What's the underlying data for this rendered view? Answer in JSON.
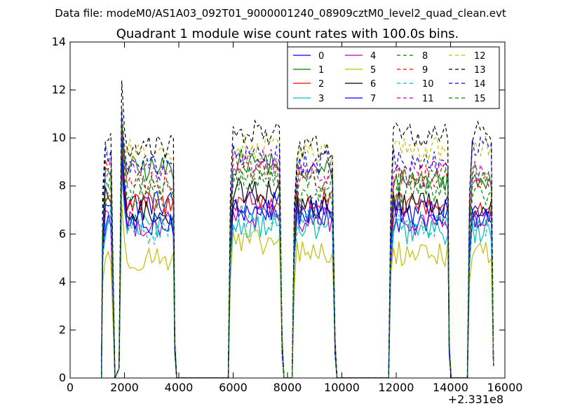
{
  "chart_data": {
    "type": "line",
    "suptitle": "Data file: modeM0/AS1A03_092T01_9000001240_08909cztM0_level2_quad_clean.evt",
    "title": "Quadrant 1 module wise count rates with 100.0s bins.",
    "xlabel": "",
    "ylabel": "",
    "xlim": [
      0,
      16000
    ],
    "ylim": [
      0,
      14
    ],
    "x_offset_label": "+2.331e8",
    "x_ticks": [
      0,
      2000,
      4000,
      6000,
      8000,
      10000,
      12000,
      14000,
      16000
    ],
    "x_tick_labels": [
      "0",
      "2000",
      "4000",
      "6000",
      "8000",
      "10000",
      "12000",
      "14000",
      "16000"
    ],
    "y_ticks": [
      0,
      2,
      4,
      6,
      8,
      10,
      12,
      14
    ],
    "y_tick_labels": [
      "0",
      "2",
      "4",
      "6",
      "8",
      "10",
      "12",
      "14"
    ],
    "grid": false,
    "legend_position": "top-right",
    "segments": [
      {
        "start": 1200,
        "end": 1550
      },
      {
        "start": 1900,
        "end": 3800
      },
      {
        "start": 5900,
        "end": 7750
      },
      {
        "start": 8250,
        "end": 9700
      },
      {
        "start": 11800,
        "end": 13900
      },
      {
        "start": 14700,
        "end": 15550
      }
    ],
    "drops": [
      {
        "from": 1550,
        "to": 1700,
        "min": 0.0
      },
      {
        "from": 1700,
        "to": 1800,
        "min": 0.0
      }
    ],
    "series": [
      {
        "name": "0",
        "color": "#0000ff",
        "dash": "solid",
        "seg_levels": [
          6.5,
          7.3,
          7.0,
          6.9,
          6.6,
          6.8
        ],
        "peak": 10.2
      },
      {
        "name": "1",
        "color": "#008000",
        "dash": "solid",
        "seg_levels": [
          8.4,
          8.7,
          9.0,
          8.6,
          8.3,
          8.4
        ],
        "peak": 10.6
      },
      {
        "name": "2",
        "color": "#ff0000",
        "dash": "solid",
        "seg_levels": [
          7.4,
          7.2,
          7.4,
          7.3,
          7.2,
          7.0
        ],
        "peak": 9.5
      },
      {
        "name": "3",
        "color": "#00bfbf",
        "dash": "solid",
        "seg_levels": [
          6.4,
          6.3,
          6.4,
          6.3,
          6.1,
          6.1
        ],
        "peak": 8.7
      },
      {
        "name": "4",
        "color": "#bf00bf",
        "dash": "solid",
        "seg_levels": [
          6.8,
          6.4,
          6.7,
          6.6,
          6.5,
          6.5
        ],
        "peak": 8.6
      },
      {
        "name": "5",
        "color": "#bfbf00",
        "dash": "solid",
        "seg_levels": [
          5.2,
          5.0,
          5.6,
          5.2,
          5.2,
          5.3
        ],
        "peak": 7.1
      },
      {
        "name": "6",
        "color": "#000000",
        "dash": "solid",
        "seg_levels": [
          7.5,
          6.9,
          7.8,
          7.1,
          7.3,
          7.2
        ],
        "peak": 9.2
      },
      {
        "name": "7",
        "color": "#0000ff",
        "dash": "solid",
        "seg_levels": [
          7.2,
          6.5,
          7.2,
          6.9,
          6.9,
          6.8
        ],
        "peak": 9.1
      },
      {
        "name": "8",
        "color": "#008000",
        "dash": "dashed",
        "seg_levels": [
          7.8,
          7.6,
          8.2,
          7.7,
          7.7,
          7.6
        ],
        "peak": 9.8
      },
      {
        "name": "9",
        "color": "#ff0000",
        "dash": "dashed",
        "seg_levels": [
          8.8,
          8.2,
          8.8,
          8.3,
          8.4,
          8.3
        ],
        "peak": 10.2
      },
      {
        "name": "10",
        "color": "#00bfbf",
        "dash": "dashed",
        "seg_levels": [
          6.6,
          6.1,
          6.7,
          6.5,
          6.4,
          6.4
        ],
        "peak": 8.3
      },
      {
        "name": "11",
        "color": "#bf00bf",
        "dash": "dashed",
        "seg_levels": [
          8.8,
          8.6,
          9.0,
          8.6,
          8.5,
          8.5
        ],
        "peak": 10.3
      },
      {
        "name": "12",
        "color": "#bfbf00",
        "dash": "dashed",
        "seg_levels": [
          9.6,
          9.4,
          9.6,
          9.4,
          9.5,
          9.6
        ],
        "peak": 10.8
      },
      {
        "name": "13",
        "color": "#000000",
        "dash": "dashed",
        "seg_levels": [
          10.2,
          9.6,
          10.2,
          9.6,
          10.1,
          10.3
        ],
        "peak": 12.2
      },
      {
        "name": "14",
        "color": "#0000ff",
        "dash": "dashed",
        "seg_levels": [
          9.3,
          8.8,
          9.2,
          9.0,
          9.1,
          9.6
        ],
        "peak": 11.2
      },
      {
        "name": "15",
        "color": "#008000",
        "dash": "dashed",
        "seg_levels": [
          8.3,
          8.0,
          8.4,
          8.1,
          8.2,
          8.4
        ],
        "peak": 10.4
      }
    ]
  }
}
